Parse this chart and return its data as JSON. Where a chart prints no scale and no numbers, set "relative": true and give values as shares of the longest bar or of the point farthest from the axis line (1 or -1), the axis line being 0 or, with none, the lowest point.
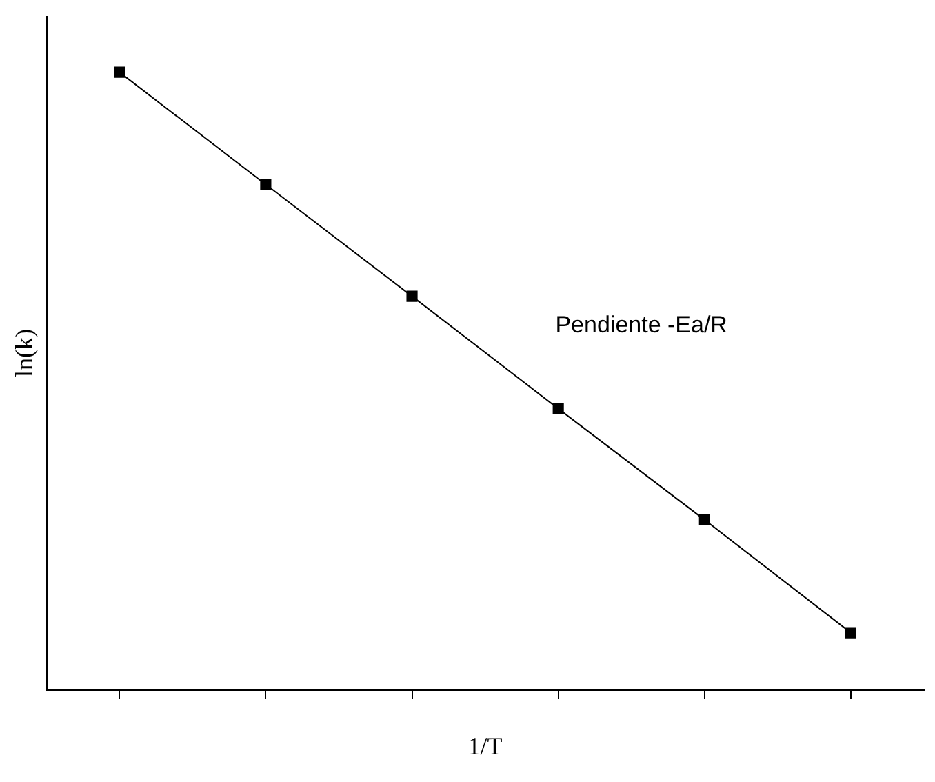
{
  "chart_data": {
    "type": "line",
    "xlabel": "1/T",
    "ylabel": "ln(k)",
    "relative": true,
    "marker": "square",
    "grid": false,
    "legend": false,
    "categories": [
      null,
      null,
      null,
      null,
      null,
      null
    ],
    "series": [
      {
        "color": "#000000",
        "values": [
          1,
          0.818,
          0.637,
          0.455,
          0.275,
          0.092
        ]
      }
    ],
    "annotations": [
      "Pendiente -Ea/R"
    ]
  }
}
